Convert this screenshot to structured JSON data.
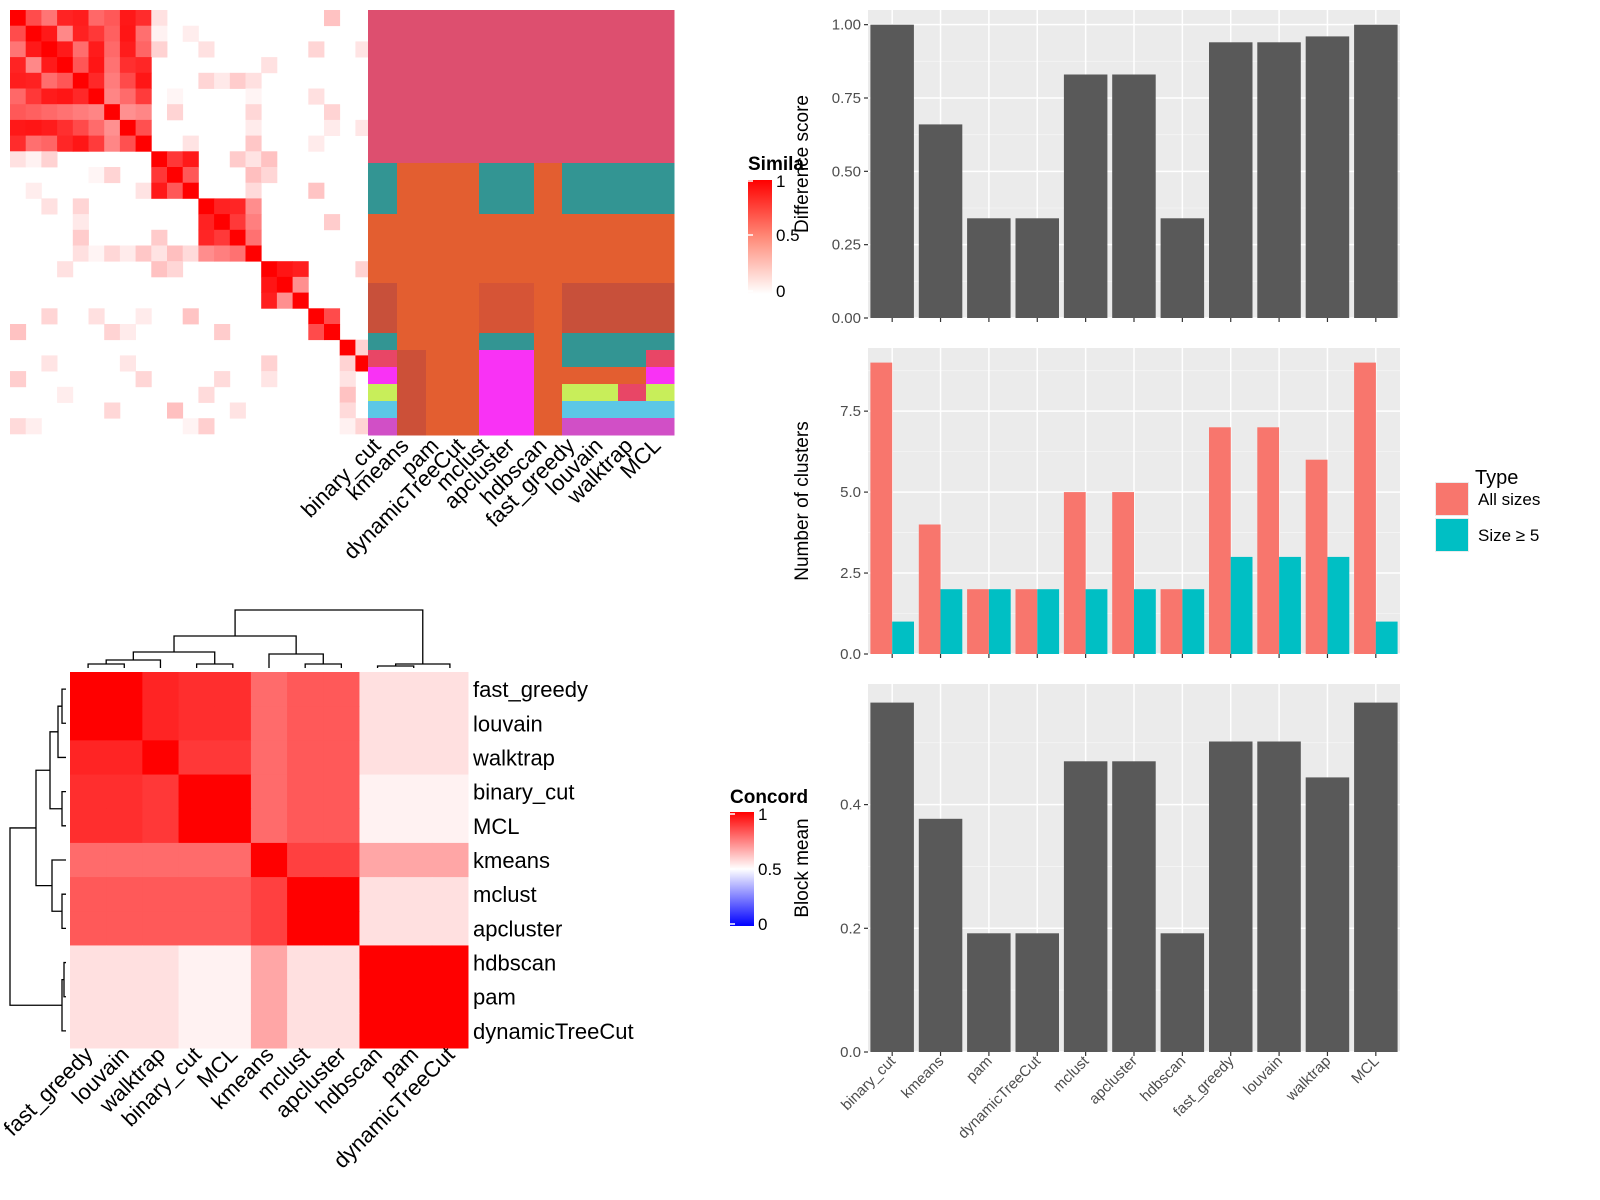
{
  "methods": [
    "binary_cut",
    "kmeans",
    "pam",
    "dynamicTreeCut",
    "mclust",
    "apcluster",
    "hdbscan",
    "fast_greedy",
    "louvain",
    "walktrap",
    "MCL"
  ],
  "colors": {
    "bar_dark": "#595959",
    "panel_bg": "#ebebeb",
    "all_sizes": "#f8766d",
    "size_ge5": "#00bfc4",
    "heat_high": "#ff0000",
    "heat_low": "#ffffff",
    "heat_zero_blue": "#0000ff"
  },
  "chart_data": [
    {
      "id": "similarity-heatmap",
      "type": "heatmap",
      "legend_title": "Simila",
      "legend_ticks": [
        "1",
        "0.5",
        "0"
      ],
      "column_labels": [
        "binary_cut",
        "kmeans",
        "pam",
        "dynamicTreeCut",
        "mclust",
        "apcluster",
        "hdbscan",
        "fast_greedy",
        "louvain",
        "walktrap",
        "MCL"
      ],
      "blocks": [
        [
          0,
          9
        ],
        [
          9,
          12
        ],
        [
          12,
          16
        ],
        [
          16,
          19
        ],
        [
          19,
          21
        ],
        [
          21,
          22
        ],
        [
          22,
          23
        ],
        [
          23,
          24
        ],
        [
          24,
          25
        ],
        [
          25,
          26
        ],
        [
          26,
          27
        ]
      ],
      "cluster_assignments": [
        [
          0,
          0,
          0,
          0,
          0,
          0,
          0,
          0,
          0,
          0,
          0
        ],
        [
          1,
          2,
          2,
          1,
          2,
          1,
          1,
          1,
          1,
          1,
          1
        ],
        [
          2,
          2,
          2,
          2,
          2,
          2,
          2,
          2,
          2,
          2,
          2
        ],
        [
          3,
          2,
          2,
          3,
          2,
          3,
          3,
          3,
          3,
          3,
          3
        ],
        [
          4,
          2,
          2,
          4,
          2,
          4,
          4,
          4,
          4,
          4,
          4
        ],
        [
          5,
          6,
          2,
          7,
          2,
          8,
          8,
          8,
          8,
          8,
          9
        ],
        [
          10,
          6,
          2,
          11,
          2,
          12,
          12,
          12,
          12,
          12,
          10
        ],
        [
          13,
          6,
          2,
          11,
          2,
          14,
          14,
          14,
          14,
          15,
          14
        ],
        [
          16,
          6,
          2,
          11,
          2,
          17,
          17,
          17,
          17,
          17,
          17
        ],
        [
          18,
          6,
          2,
          11,
          2,
          18,
          18,
          18,
          18,
          18,
          18
        ],
        [
          18,
          6,
          2,
          11,
          2,
          18,
          18,
          18,
          18,
          18,
          18
        ]
      ]
    },
    {
      "id": "concordance-heatmap",
      "type": "heatmap",
      "legend_title": "Concord",
      "legend_ticks": [
        "1",
        "0.5",
        "0"
      ],
      "labels": [
        "fast_greedy",
        "louvain",
        "walktrap",
        "binary_cut",
        "MCL",
        "kmeans",
        "mclust",
        "apcluster",
        "hdbscan",
        "pam",
        "dynamicTreeCut"
      ],
      "values": [
        [
          1.0,
          1.0,
          0.86,
          0.82,
          0.82,
          0.58,
          0.65,
          0.65,
          0.12,
          0.12,
          0.12
        ],
        [
          1.0,
          1.0,
          0.86,
          0.82,
          0.82,
          0.58,
          0.65,
          0.65,
          0.12,
          0.12,
          0.12
        ],
        [
          0.86,
          0.86,
          1.0,
          0.78,
          0.78,
          0.58,
          0.65,
          0.65,
          0.12,
          0.12,
          0.12
        ],
        [
          0.82,
          0.82,
          0.78,
          1.0,
          1.0,
          0.58,
          0.65,
          0.65,
          0.05,
          0.05,
          0.05
        ],
        [
          0.82,
          0.82,
          0.78,
          1.0,
          1.0,
          0.58,
          0.65,
          0.65,
          0.05,
          0.05,
          0.05
        ],
        [
          0.58,
          0.58,
          0.58,
          0.58,
          0.58,
          1.0,
          0.75,
          0.75,
          0.35,
          0.35,
          0.35
        ],
        [
          0.65,
          0.65,
          0.65,
          0.65,
          0.65,
          0.75,
          1.0,
          1.0,
          0.12,
          0.12,
          0.12
        ],
        [
          0.65,
          0.65,
          0.65,
          0.65,
          0.65,
          0.75,
          1.0,
          1.0,
          0.12,
          0.12,
          0.12
        ],
        [
          0.12,
          0.12,
          0.12,
          0.05,
          0.05,
          0.35,
          0.12,
          0.12,
          1.0,
          1.0,
          1.0
        ],
        [
          0.12,
          0.12,
          0.12,
          0.05,
          0.05,
          0.35,
          0.12,
          0.12,
          1.0,
          1.0,
          1.0
        ],
        [
          0.12,
          0.12,
          0.12,
          0.05,
          0.05,
          0.35,
          0.12,
          0.12,
          1.0,
          1.0,
          1.0
        ]
      ]
    },
    {
      "id": "difference-score-bars",
      "type": "bar",
      "categories": [
        "binary_cut",
        "kmeans",
        "pam",
        "dynamicTreeCut",
        "mclust",
        "apcluster",
        "hdbscan",
        "fast_greedy",
        "louvain",
        "walktrap",
        "MCL"
      ],
      "values": [
        1.0,
        0.66,
        0.34,
        0.34,
        0.83,
        0.83,
        0.34,
        0.94,
        0.94,
        0.96,
        1.0
      ],
      "ylabel": "Difference score",
      "ylim": [
        0,
        1.05
      ],
      "yticks": [
        "0.00",
        "0.25",
        "0.50",
        "0.75",
        "1.00"
      ],
      "grid": true
    },
    {
      "id": "number-of-clusters-bars",
      "type": "bar",
      "categories": [
        "binary_cut",
        "kmeans",
        "pam",
        "dynamicTreeCut",
        "mclust",
        "apcluster",
        "hdbscan",
        "fast_greedy",
        "louvain",
        "walktrap",
        "MCL"
      ],
      "series": [
        {
          "name": "All sizes",
          "values": [
            9,
            4,
            2,
            2,
            5,
            5,
            2,
            7,
            7,
            6,
            9
          ]
        },
        {
          "name": "Size ≥ 5",
          "values": [
            1,
            2,
            2,
            2,
            2,
            2,
            2,
            3,
            3,
            3,
            1
          ]
        }
      ],
      "ylabel": "Number of clusters",
      "ylim": [
        0,
        9.45
      ],
      "yticks": [
        "0.0",
        "2.5",
        "5.0",
        "7.5"
      ],
      "legend_title": "Type",
      "legend_position": "right",
      "grid": true
    },
    {
      "id": "block-mean-bars",
      "type": "bar",
      "categories": [
        "binary_cut",
        "kmeans",
        "pam",
        "dynamicTreeCut",
        "mclust",
        "apcluster",
        "hdbscan",
        "fast_greedy",
        "louvain",
        "walktrap",
        "MCL"
      ],
      "values": [
        0.565,
        0.377,
        0.192,
        0.192,
        0.47,
        0.47,
        0.192,
        0.502,
        0.502,
        0.444,
        0.565
      ],
      "ylabel": "Block mean",
      "ylim": [
        0,
        0.595
      ],
      "yticks": [
        "0.0",
        "0.2",
        "0.4"
      ],
      "grid": true
    }
  ]
}
